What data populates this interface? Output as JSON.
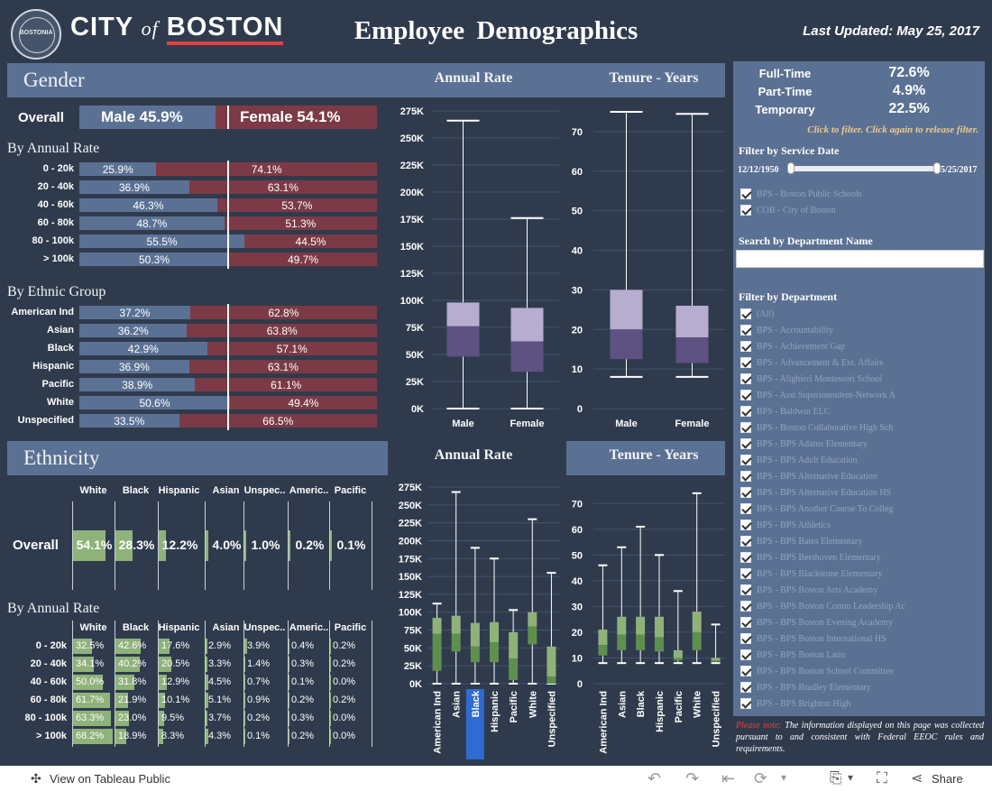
{
  "header": {
    "seal_text": "BOSTONIA",
    "city_a": "CITY",
    "city_of": "of",
    "city_b": "BOSTON",
    "title": "Employee Demographics",
    "last_updated": "Last Updated: May 25, 2017"
  },
  "gender": {
    "section_title": "Gender",
    "annual_rate_title": "Annual Rate",
    "tenure_title": "Tenure - Years",
    "overall_label": "Overall",
    "overall_male": "Male 45.9%",
    "overall_female": "Female 54.1%",
    "overall_male_pct": 45.9,
    "by_rate_title": "By Annual Rate",
    "by_rate": [
      {
        "label": "0 - 20k",
        "male": "25.9%",
        "female": "74.1%",
        "pct": 25.9
      },
      {
        "label": "20 - 40k",
        "male": "36.9%",
        "female": "63.1%",
        "pct": 36.9
      },
      {
        "label": "40 - 60k",
        "male": "46.3%",
        "female": "53.7%",
        "pct": 46.3
      },
      {
        "label": "60 - 80k",
        "male": "48.7%",
        "female": "51.3%",
        "pct": 48.7
      },
      {
        "label": "80 - 100k",
        "male": "55.5%",
        "female": "44.5%",
        "pct": 55.5
      },
      {
        "label": "> 100k",
        "male": "50.3%",
        "female": "49.7%",
        "pct": 50.3
      }
    ],
    "by_eth_title": "By Ethnic Group",
    "by_eth": [
      {
        "label": "American Ind",
        "male": "37.2%",
        "female": "62.8%",
        "pct": 37.2
      },
      {
        "label": "Asian",
        "male": "36.2%",
        "female": "63.8%",
        "pct": 36.2
      },
      {
        "label": "Black",
        "male": "42.9%",
        "female": "57.1%",
        "pct": 42.9
      },
      {
        "label": "Hispanic",
        "male": "36.9%",
        "female": "63.1%",
        "pct": 36.9
      },
      {
        "label": "Pacific",
        "male": "38.9%",
        "female": "61.1%",
        "pct": 38.9
      },
      {
        "label": "White",
        "male": "50.6%",
        "female": "49.4%",
        "pct": 50.6
      },
      {
        "label": "Unspecified",
        "male": "33.5%",
        "female": "66.5%",
        "pct": 33.5
      }
    ]
  },
  "ethnicity": {
    "section_title": "Ethnicity",
    "annual_rate_title": "Annual Rate",
    "tenure_title": "Tenure - Years",
    "columns": [
      "White",
      "Black",
      "Hispanic",
      "Asian",
      "Unspec..",
      "Americ..",
      "Pacific"
    ],
    "overall_label": "Overall",
    "overall": [
      {
        "v": "54.1%",
        "p": 54.1
      },
      {
        "v": "28.3%",
        "p": 28.3
      },
      {
        "v": "12.2%",
        "p": 12.2
      },
      {
        "v": "4.0%",
        "p": 4.0
      },
      {
        "v": "1.0%",
        "p": 1.0
      },
      {
        "v": "0.2%",
        "p": 0.2
      },
      {
        "v": "0.1%",
        "p": 0.1
      }
    ],
    "by_rate_title": "By Annual Rate",
    "rows": [
      {
        "label": "0 - 20k",
        "vals": [
          "32.5%",
          "42.6%",
          "17.6%",
          "2.9%",
          "3.9%",
          "0.4%",
          "0.2%"
        ]
      },
      {
        "label": "20 - 40k",
        "vals": [
          "34.1%",
          "40.2%",
          "20.5%",
          "3.3%",
          "1.4%",
          "0.3%",
          "0.2%"
        ]
      },
      {
        "label": "40 - 60k",
        "vals": [
          "50.0%",
          "31.8%",
          "12.9%",
          "4.5%",
          "0.7%",
          "0.1%",
          "0.0%"
        ]
      },
      {
        "label": "60 - 80k",
        "vals": [
          "61.7%",
          "21.9%",
          "10.1%",
          "5.1%",
          "0.9%",
          "0.2%",
          "0.2%"
        ]
      },
      {
        "label": "80 - 100k",
        "vals": [
          "63.3%",
          "23.0%",
          "9.5%",
          "3.7%",
          "0.2%",
          "0.3%",
          "0.0%"
        ]
      },
      {
        "label": "> 100k",
        "vals": [
          "68.2%",
          "18.9%",
          "8.3%",
          "4.3%",
          "0.1%",
          "0.2%",
          "0.0%"
        ]
      }
    ]
  },
  "chart_data": [
    {
      "type": "box",
      "title": "Annual Rate",
      "categories": [
        "Male",
        "Female"
      ],
      "yticks": [
        "275K",
        "250K",
        "225K",
        "200K",
        "175K",
        "150K",
        "125K",
        "100K",
        "75K",
        "50K",
        "25K",
        "0K"
      ],
      "ylim": [
        0,
        275000
      ],
      "boxes": [
        {
          "min": 0,
          "q1": 48000,
          "median": 76000,
          "q3": 98000,
          "max": 266000
        },
        {
          "min": 0,
          "q1": 34000,
          "median": 62000,
          "q3": 93000,
          "max": 176000
        }
      ]
    },
    {
      "type": "box",
      "title": "Tenure - Years",
      "categories": [
        "Male",
        "Female"
      ],
      "yticks": [
        "70",
        "60",
        "50",
        "40",
        "30",
        "20",
        "10",
        "0"
      ],
      "ylim": [
        0,
        75
      ],
      "boxes": [
        {
          "min": 8,
          "q1": 12.5,
          "median": 20,
          "q3": 30,
          "max": 75
        },
        {
          "min": 8,
          "q1": 11.5,
          "median": 18,
          "q3": 26,
          "max": 74.5
        }
      ]
    },
    {
      "type": "box",
      "title": "Annual Rate",
      "categories": [
        "American Ind",
        "Asian",
        "Black",
        "Hispanic",
        "Pacific",
        "White",
        "Unspecified"
      ],
      "highlight": "Black",
      "yticks": [
        "275K",
        "250K",
        "225K",
        "200K",
        "175K",
        "150K",
        "125K",
        "100K",
        "75K",
        "50K",
        "25K",
        "0K"
      ],
      "ylim": [
        0,
        275000
      ],
      "boxes": [
        {
          "min": 0,
          "q1": 18000,
          "median": 70000,
          "q3": 92000,
          "max": 112000
        },
        {
          "min": 0,
          "q1": 45000,
          "median": 70000,
          "q3": 95000,
          "max": 268000
        },
        {
          "min": 0,
          "q1": 30000,
          "median": 52000,
          "q3": 85000,
          "max": 190000
        },
        {
          "min": 0,
          "q1": 30000,
          "median": 58000,
          "q3": 86000,
          "max": 175000
        },
        {
          "min": 0,
          "q1": 5000,
          "median": 35000,
          "q3": 72000,
          "max": 103000
        },
        {
          "min": 0,
          "q1": 55000,
          "median": 80000,
          "q3": 100000,
          "max": 230000
        },
        {
          "min": 0,
          "q1": 0,
          "median": 10000,
          "q3": 52000,
          "max": 155000
        }
      ]
    },
    {
      "type": "box",
      "title": "Tenure - Years",
      "categories": [
        "American Ind",
        "Asian",
        "Black",
        "Hispanic",
        "Pacific",
        "White",
        "Unspecified"
      ],
      "yticks": [
        "70",
        "60",
        "50",
        "40",
        "30",
        "20",
        "10",
        "0"
      ],
      "ylim": [
        0,
        75
      ],
      "boxes": [
        {
          "min": 8,
          "q1": 11,
          "median": 15,
          "q3": 21,
          "max": 46
        },
        {
          "min": 8,
          "q1": 13,
          "median": 19,
          "q3": 26,
          "max": 53
        },
        {
          "min": 8,
          "q1": 13,
          "median": 19,
          "q3": 26,
          "max": 61
        },
        {
          "min": 8,
          "q1": 12.5,
          "median": 18,
          "q3": 26,
          "max": 50
        },
        {
          "min": 8,
          "q1": 9,
          "median": 10,
          "q3": 13,
          "max": 36
        },
        {
          "min": 8,
          "q1": 13,
          "median": 20,
          "q3": 28,
          "max": 74
        },
        {
          "min": 8,
          "q1": 8.5,
          "median": 9,
          "q3": 10,
          "max": 23
        }
      ]
    }
  ],
  "panel": {
    "stats": [
      {
        "label": "Full-Time",
        "value": "72.6%"
      },
      {
        "label": "Part-Time",
        "value": "4.9%"
      },
      {
        "label": "Temporary",
        "value": "22.5%"
      }
    ],
    "filter_hint": "Click to filter. Click again to release filter.",
    "service_title": "Filter by Service Date",
    "date_start": "12/12/1950",
    "date_end": "5/25/2017",
    "orgs": [
      "BPS - Boston Public Schools",
      "COB - City of Boston"
    ],
    "search_title": "Search by Department Name",
    "search_value": "",
    "dept_title": "Filter by Department",
    "departments": [
      "(All)",
      "BPS - Accountability",
      "BPS - Achievement Gap",
      "BPS - Advancement & Ext. Affairs",
      "BPS - Alighieri Montessori School",
      "BPS - Asst Superintendent-Network A",
      "BPS - Baldwin ELC",
      "BPS - Boston Collaborative High Sch",
      "BPS - BPS Adams Elementary",
      "BPS - BPS Adult Education",
      "BPS - BPS Alternative Education",
      "BPS - BPS Alternative Education HS",
      "BPS - BPS Another Course To Colleg",
      "BPS - BPS Athletics",
      "BPS - BPS Bates Elementary",
      "BPS - BPS Beethoven Elementary",
      "BPS - BPS Blackstone Elementary",
      "BPS - BPS Boston Arts Academy",
      "BPS - BPS Boston Comm Leadership Ac",
      "BPS - BPS Boston Evening Academy",
      "BPS - BPS Boston International HS",
      "BPS - BPS Boston Latin",
      "BPS - BPS Boston School Committee",
      "BPS - BPS Bradley Elementary",
      "BPS - BPS Brighton High"
    ],
    "note_lead": "Please note:",
    "note_text": "The information displayed on this page was collected pursuant to and consistent with Federal EEOC rules and requirements."
  },
  "footer": {
    "view_label": "View on Tableau Public",
    "share_label": "Share"
  },
  "colors": {
    "bg": "#2f3b4d",
    "panel": "#5b7194",
    "male": "#5b7194",
    "female": "#7b3a45",
    "green": "#8fb27a",
    "green_dark": "#5f8f4f",
    "box_light": "#b7adcf",
    "box_dark": "#5e5282",
    "accent": "#e5403f",
    "highlight": "#2f6bd1"
  }
}
